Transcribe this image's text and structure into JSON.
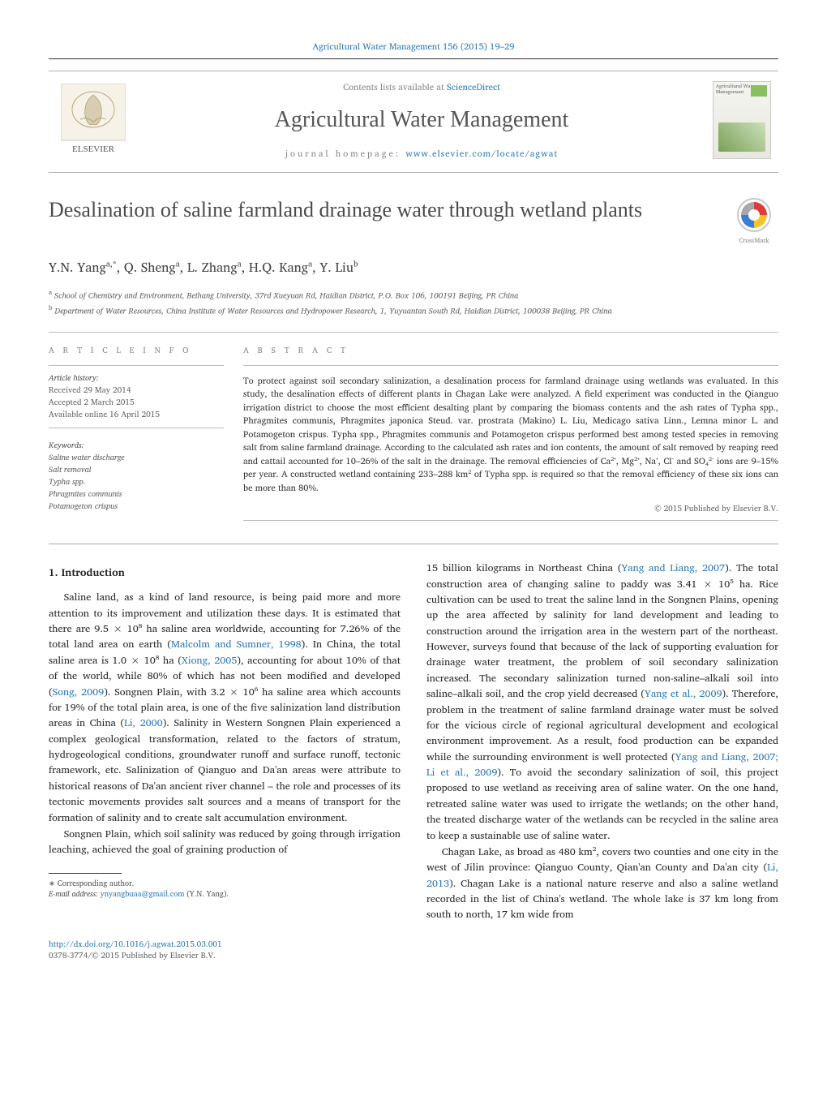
{
  "running_head": {
    "journal": "Agricultural Water Management",
    "citation": "156 (2015) 19–29",
    "sciencedirect": "ScienceDirect",
    "contents_prefix": "Contents lists available at "
  },
  "banner": {
    "journal_name": "Agricultural Water Management",
    "homepage_prefix": "journal homepage: ",
    "homepage_url": "www.elsevier.com/locate/agwat",
    "cover_title": "Agricultural Water Management"
  },
  "article": {
    "title": "Desalination of saline farmland drainage water through wetland plants",
    "authors_html": "Y.N. Yang<sup>a,*</sup>, Q. Sheng<sup>a</sup>, L. Zhang<sup>a</sup>, H.Q. Kang<sup>a</sup>, Y. Liu<sup>b</sup>",
    "affiliations": [
      "<sup>a</sup> School of Chemistry and Environment, Beihang University, 37rd Xueyuan Rd, Haidian District, P.O. Box 106, 100191 Beijing, PR China",
      "<sup>b</sup> Department of Water Resources, China Institute of Water Resources and Hydropower Research, 1, Yuyuantan South Rd, Haidian District, 100038 Beijing, PR China"
    ],
    "crossmark_label": "CrossMark"
  },
  "article_info": {
    "heading": "A R T I C L E    I N F O",
    "history_heading": "Article history:",
    "received": "Received 29 May 2014",
    "accepted": "Accepted 2 March 2015",
    "online": "Available online 16 April 2015",
    "keywords_heading": "Keywords:",
    "keywords": [
      "Saline water discharge",
      "Salt removal",
      "Typha spp.",
      "Phragmites communis",
      "Potamogeton crispus"
    ]
  },
  "abstract": {
    "heading": "A B S T R A C T",
    "text": "To protect against soil secondary salinization, a desalination process for farmland drainage using wetlands was evaluated. In this study, the desalination effects of different plants in Chagan Lake were analyzed. A field experiment was conducted in the Qianguo irrigation district to choose the most efficient desalting plant by comparing the biomass contents and the ash rates of Typha spp., Phragmites communis, Phragmites japonica Steud. var. prostrata (Makino) L. Liu, Medicago sativa Linn., Lemna minor L. and Potamogeton crispus. Typha spp., Phragmites communis and Potamogeton crispus performed best among tested species in removing salt from saline farmland drainage. According to the calculated ash rates and ion contents, the amount of salt removed by reaping reed and cattail accounted for 10–26% of the salt in the drainage. The removal efficiencies of Ca²⁺, Mg²⁺, Na⁺, Cl⁻ and SO₄²⁻ ions are 9–15% per year. A constructed wetland containing 233–288 km² of Typha spp. is required so that the removal efficiency of these six ions can be more than 80%.",
    "copyright": "© 2015 Published by Elsevier B.V."
  },
  "body": {
    "section_heading": "1.  Introduction",
    "paragraphs": [
      "Saline land, as a kind of land resource, is being paid more and more attention to its improvement and utilization these days. It is estimated that there are 9.5 × 10⁸ ha saline area worldwide, accounting for 7.26% of the total land area on earth (<span class='cite'>Malcolm and Sumner, 1998</span>). In China, the total saline area is 1.0 × 10⁸ ha (<span class='cite'>Xiong, 2005</span>), accounting for about 10% of that of the world, while 80% of which has not been modified and developed (<span class='cite'>Song, 2009</span>). Songnen Plain, with 3.2 × 10⁶ ha saline area which accounts for 19% of the total plain area, is one of the five salinization land distribution areas in China (<span class='cite'>Li, 2000</span>). Salinity in Western Songnen Plain experienced a complex geological transformation, related to the factors of stratum, hydrogeological conditions, groundwater runoff and surface runoff, tectonic framework, etc. Salinization of Qianguo and Da'an areas were attribute to historical reasons of Da'an ancient river channel – the role and processes of its tectonic movements provides salt sources and a means of transport for the formation of salinity and to create salt accumulation environment.",
      "Songnen Plain, which soil salinity was reduced by going through irrigation leaching, achieved the goal of graining production of",
      "15 billion kilograms in Northeast China (<span class='cite'>Yang and Liang, 2007</span>). The total construction area of changing saline to paddy was 3.41 × 10⁵ ha. Rice cultivation can be used to treat the saline land in the Songnen Plains, opening up the area affected by salinity for land development and leading to construction around the irrigation area in the western part of the northeast. However, surveys found that because of the lack of supporting evaluation for drainage water treatment, the problem of soil secondary salinization increased. The secondary salinization turned non-saline–alkali soil into saline–alkali soil, and the crop yield decreased (<span class='cite'>Yang et al., 2009</span>). Therefore, problem in the treatment of saline farmland drainage water must be solved for the vicious circle of regional agricultural development and ecological environment improvement. As a result, food production can be expanded while the surrounding environment is well protected (<span class='cite'>Yang and Liang, 2007; Li et al., 2009</span>). To avoid the secondary salinization of soil, this project proposed to use wetland as receiving area of saline water. On the one hand, retreated saline water was used to irrigate the wetlands; on the other hand, the treated discharge water of the wetlands can be recycled in the saline area to keep a sustainable use of saline water.",
      "Chagan Lake, as broad as 480 km², covers two counties and one city in the west of Jilin province: Qianguo County, Qian'an County and Da'an city (<span class='cite'>Li, 2013</span>). Chagan Lake is a national nature reserve and also a saline wetland recorded in the list of China's wetland. The whole lake is 37 km long from south to north, 17 km wide from"
    ]
  },
  "footnotes": {
    "corr": "∗ Corresponding author.",
    "email_label": "E-mail address:",
    "email": "ynyangbuaa@gmail.com",
    "email_suffix": "(Y.N. Yang)."
  },
  "doi": {
    "url": "http://dx.doi.org/10.1016/j.agwat.2015.03.001",
    "issn_line": "0378-3774/© 2015 Published by Elsevier B.V."
  },
  "colors": {
    "link": "#2e7ab8",
    "text": "#333333",
    "muted": "#888888",
    "rule": "#bbbbbb",
    "crossmark_ring": "#c8c8c8",
    "crossmark_r": "#e03a3a",
    "crossmark_y": "#f4c430",
    "crossmark_b": "#3a7fd5",
    "crossmark_g": "#a8a8a8",
    "elsevier_orange": "#e9711c"
  }
}
